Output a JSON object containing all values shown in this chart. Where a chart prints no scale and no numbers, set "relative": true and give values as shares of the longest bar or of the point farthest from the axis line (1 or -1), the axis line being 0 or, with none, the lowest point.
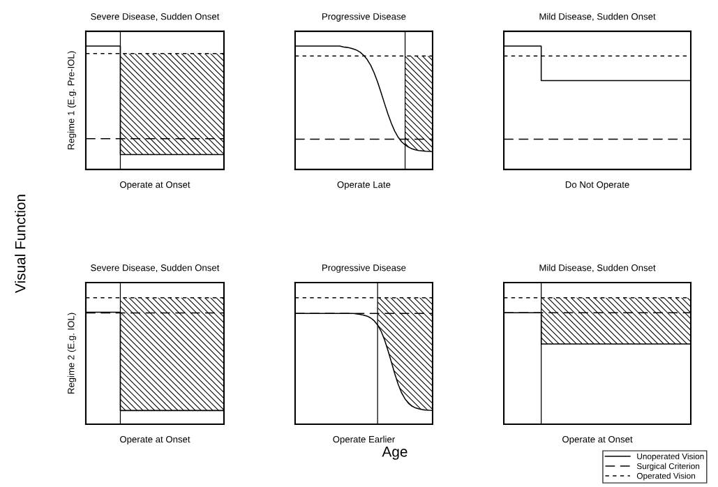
{
  "chart_data": [
    {
      "type": "line",
      "title": "Severe Disease, Sudden Onset",
      "xlabel": "Operate at Onset",
      "ylabel": "Regime 1 (E.g. Pre-IOL)",
      "relative": true,
      "annotations": [
        "Visual Function",
        "Age"
      ],
      "categories": [
        null,
        null,
        null,
        null,
        null,
        null,
        null,
        null,
        null,
        null,
        null,
        null,
        null,
        null,
        null,
        null,
        null,
        null,
        null,
        null,
        null
      ],
      "series": [
        {
          "type": "step",
          "color": "#000000",
          "line_style": "solid",
          "values": [
            1,
            1,
            1,
            1,
            1,
            0.121,
            0.121,
            0.121,
            0.121,
            0.121,
            0.121,
            0.121,
            0.121,
            0.121,
            0.121,
            0.121,
            0.121,
            0.121,
            0.121,
            0.121,
            0.121
          ]
        },
        {
          "type": "line",
          "color": "#000000",
          "line_style": "dashed",
          "values": [
            0.25,
            0.25,
            0.25,
            0.25,
            0.25,
            0.25,
            0.25,
            0.25,
            0.25,
            0.25,
            0.25,
            0.25,
            0.25,
            0.25,
            0.25,
            0.25,
            0.25,
            0.25,
            0.25,
            0.25,
            0.25
          ]
        },
        {
          "type": "line",
          "color": "#000000",
          "line_style": "dotted",
          "values": [
            0.94,
            0.94,
            0.94,
            0.94,
            0.94,
            0.94,
            0.94,
            0.94,
            0.94,
            0.94,
            0.94,
            0.94,
            0.94,
            0.94,
            0.94,
            0.94,
            0.94,
            0.94,
            0.94,
            0.94,
            0.94
          ],
          "lower": [
            null,
            null,
            null,
            null,
            null,
            0.121,
            0.121,
            0.121,
            0.121,
            0.121,
            0.121,
            0.121,
            0.121,
            0.121,
            0.121,
            0.121,
            0.121,
            0.121,
            0.121,
            0.121,
            0.121
          ],
          "upper": [
            null,
            null,
            null,
            null,
            null,
            0.94,
            0.94,
            0.94,
            0.94,
            0.94,
            0.94,
            0.94,
            0.94,
            0.94,
            0.94,
            0.94,
            0.94,
            0.94,
            0.94,
            0.94,
            0.94
          ]
        }
      ]
    },
    {
      "type": "line",
      "title": "Progressive Disease",
      "xlabel": "Operate Late",
      "relative": true,
      "categories": [
        null,
        null,
        null,
        null,
        null,
        null,
        null,
        null,
        null,
        null,
        null,
        null,
        null,
        null,
        null,
        null,
        null,
        null,
        null,
        null,
        null,
        null,
        null,
        null,
        null,
        null,
        null,
        null,
        null,
        null,
        null,
        null,
        null,
        null,
        null,
        null,
        null,
        null,
        null,
        null,
        null
      ],
      "series": [
        {
          "type": "line",
          "color": "#000000",
          "line_style": "solid",
          "values": [
            1,
            1,
            1,
            1,
            1,
            1,
            1,
            1,
            1,
            1,
            1,
            1,
            1,
            1,
            0.993,
            0.99,
            0.985,
            0.977,
            0.966,
            0.949,
            0.924,
            0.89,
            0.844,
            0.783,
            0.709,
            0.625,
            0.536,
            0.451,
            0.374,
            0.31,
            0.261,
            0.224,
            0.199,
            0.181,
            0.168,
            0.159,
            0.154,
            0.151,
            0.148,
            0.146,
            0.145
          ]
        },
        {
          "type": "line",
          "color": "#000000",
          "line_style": "dashed",
          "values": [
            0.245,
            0.245,
            0.245,
            0.245,
            0.245,
            0.245,
            0.245,
            0.245,
            0.245,
            0.245,
            0.245,
            0.245,
            0.245,
            0.245,
            0.245,
            0.245,
            0.245,
            0.245,
            0.245,
            0.245,
            0.245,
            0.245,
            0.245,
            0.245,
            0.245,
            0.245,
            0.245,
            0.245,
            0.245,
            0.245,
            0.245,
            0.245,
            0.245,
            0.245,
            0.245,
            0.245,
            0.245,
            0.245,
            0.245,
            0.245,
            0.245
          ]
        },
        {
          "type": "line",
          "color": "#000000",
          "line_style": "dotted",
          "values": [
            0.92,
            0.92,
            0.92,
            0.92,
            0.92,
            0.92,
            0.92,
            0.92,
            0.92,
            0.92,
            0.92,
            0.92,
            0.92,
            0.92,
            0.92,
            0.92,
            0.92,
            0.92,
            0.92,
            0.92,
            0.92,
            0.92,
            0.92,
            0.92,
            0.92,
            0.92,
            0.92,
            0.92,
            0.92,
            0.92,
            0.92,
            0.92,
            0.92,
            0.92,
            0.92,
            0.92,
            0.92,
            0.92,
            0.92,
            0.92,
            0.92
          ],
          "lower": [
            null,
            null,
            null,
            null,
            null,
            null,
            null,
            null,
            null,
            null,
            null,
            null,
            null,
            null,
            null,
            null,
            null,
            null,
            null,
            null,
            null,
            null,
            null,
            null,
            null,
            null,
            null,
            null,
            null,
            null,
            null,
            null,
            0.199,
            0.181,
            0.168,
            0.159,
            0.154,
            0.151,
            0.148,
            0.146,
            0.145
          ],
          "upper": [
            null,
            null,
            null,
            null,
            null,
            null,
            null,
            null,
            null,
            null,
            null,
            null,
            null,
            null,
            null,
            null,
            null,
            null,
            null,
            null,
            null,
            null,
            null,
            null,
            null,
            null,
            null,
            null,
            null,
            null,
            null,
            null,
            0.92,
            0.92,
            0.92,
            0.92,
            0.92,
            0.92,
            0.92,
            0.92,
            0.92
          ]
        }
      ]
    },
    {
      "type": "line",
      "title": "Mild Disease, Sudden Onset",
      "xlabel": "Do Not Operate",
      "relative": true,
      "categories": [
        null,
        null,
        null,
        null,
        null,
        null,
        null,
        null,
        null,
        null,
        null,
        null,
        null,
        null,
        null,
        null,
        null,
        null,
        null,
        null,
        null
      ],
      "series": [
        {
          "type": "step",
          "color": "#000000",
          "line_style": "solid",
          "values": [
            1,
            1,
            1,
            1,
            0.72,
            0.72,
            0.72,
            0.72,
            0.72,
            0.72,
            0.72,
            0.72,
            0.72,
            0.72,
            0.72,
            0.72,
            0.72,
            0.72,
            0.72,
            0.72,
            0.72
          ]
        },
        {
          "type": "line",
          "color": "#000000",
          "line_style": "dashed",
          "values": [
            0.245,
            0.245,
            0.245,
            0.245,
            0.245,
            0.245,
            0.245,
            0.245,
            0.245,
            0.245,
            0.245,
            0.245,
            0.245,
            0.245,
            0.245,
            0.245,
            0.245,
            0.245,
            0.245,
            0.245,
            0.245
          ]
        },
        {
          "type": "line",
          "color": "#000000",
          "line_style": "dotted",
          "values": [
            0.92,
            0.92,
            0.92,
            0.92,
            0.92,
            0.92,
            0.92,
            0.92,
            0.92,
            0.92,
            0.92,
            0.92,
            0.92,
            0.92,
            0.92,
            0.92,
            0.92,
            0.92,
            0.92,
            0.92,
            0.92
          ]
        }
      ]
    },
    {
      "type": "line",
      "title": "Severe Disease, Sudden Onset",
      "xlabel": "Operate at Onset",
      "ylabel": "Regime 2 (E.g. IOL)",
      "relative": true,
      "categories": [
        null,
        null,
        null,
        null,
        null,
        null,
        null,
        null,
        null,
        null,
        null,
        null,
        null,
        null,
        null,
        null,
        null,
        null,
        null,
        null,
        null
      ],
      "series": [
        {
          "type": "step",
          "color": "#000000",
          "line_style": "solid",
          "values": [
            0.885,
            0.885,
            0.885,
            0.885,
            0.885,
            0.108,
            0.108,
            0.108,
            0.108,
            0.108,
            0.108,
            0.108,
            0.108,
            0.108,
            0.108,
            0.108,
            0.108,
            0.108,
            0.108,
            0.108,
            0.108
          ]
        },
        {
          "type": "line",
          "color": "#000000",
          "line_style": "dashed",
          "values": [
            0.88,
            0.88,
            0.88,
            0.88,
            0.88,
            0.88,
            0.88,
            0.88,
            0.88,
            0.88,
            0.88,
            0.88,
            0.88,
            0.88,
            0.88,
            0.88,
            0.88,
            0.88,
            0.88,
            0.88,
            0.88
          ]
        },
        {
          "type": "line",
          "color": "#000000",
          "line_style": "dotted",
          "values": [
            1,
            1,
            1,
            1,
            1,
            1,
            1,
            1,
            1,
            1,
            1,
            1,
            1,
            1,
            1,
            1,
            1,
            1,
            1,
            1,
            1
          ],
          "lower": [
            null,
            null,
            null,
            null,
            null,
            0.108,
            0.108,
            0.108,
            0.108,
            0.108,
            0.108,
            0.108,
            0.108,
            0.108,
            0.108,
            0.108,
            0.108,
            0.108,
            0.108,
            0.108,
            0.108
          ],
          "upper": [
            null,
            null,
            null,
            null,
            null,
            1,
            1,
            1,
            1,
            1,
            1,
            1,
            1,
            1,
            1,
            1,
            1,
            1,
            1,
            1,
            1
          ]
        }
      ]
    },
    {
      "type": "line",
      "title": "Progressive Disease",
      "xlabel": "Operate Earlier",
      "relative": true,
      "categories": [
        null,
        null,
        null,
        null,
        null,
        null,
        null,
        null,
        null,
        null,
        null,
        null,
        null,
        null,
        null,
        null,
        null,
        null,
        null,
        null,
        null,
        null,
        null,
        null,
        null,
        null,
        null,
        null,
        null,
        null,
        null,
        null,
        null,
        null,
        null,
        null,
        null,
        null,
        null,
        null,
        null
      ],
      "series": [
        {
          "type": "line",
          "color": "#000000",
          "line_style": "solid",
          "values": [
            0.876,
            0.876,
            0.876,
            0.876,
            0.876,
            0.876,
            0.876,
            0.876,
            0.876,
            0.876,
            0.876,
            0.876,
            0.876,
            0.876,
            0.876,
            0.876,
            0.876,
            0.876,
            0.871,
            0.868,
            0.862,
            0.854,
            0.84,
            0.818,
            0.785,
            0.736,
            0.669,
            0.585,
            0.492,
            0.398,
            0.314,
            0.247,
            0.199,
            0.165,
            0.143,
            0.129,
            0.121,
            0.115,
            0.112,
            0.11,
            0.109
          ]
        },
        {
          "type": "line",
          "color": "#000000",
          "line_style": "dashed",
          "values": [
            0.876,
            0.876,
            0.876,
            0.876,
            0.876,
            0.876,
            0.876,
            0.876,
            0.876,
            0.876,
            0.876,
            0.876,
            0.876,
            0.876,
            0.876,
            0.876,
            0.876,
            0.876,
            0.876,
            0.876,
            0.876,
            0.876,
            0.876,
            0.876,
            0.876,
            0.876,
            0.876,
            0.876,
            0.876,
            0.876,
            0.876,
            0.876,
            0.876,
            0.876,
            0.876,
            0.876,
            0.876,
            0.876,
            0.876,
            0.876,
            0.876
          ]
        },
        {
          "type": "line",
          "color": "#000000",
          "line_style": "dotted",
          "values": [
            1,
            1,
            1,
            1,
            1,
            1,
            1,
            1,
            1,
            1,
            1,
            1,
            1,
            1,
            1,
            1,
            1,
            1,
            1,
            1,
            1,
            1,
            1,
            1,
            1,
            1,
            1,
            1,
            1,
            1,
            1,
            1,
            1,
            1,
            1,
            1,
            1,
            1,
            1,
            1,
            1
          ],
          "lower": [
            null,
            null,
            null,
            null,
            null,
            null,
            null,
            null,
            null,
            null,
            null,
            null,
            null,
            null,
            null,
            null,
            null,
            null,
            null,
            null,
            null,
            null,
            null,
            null,
            0.785,
            0.736,
            0.669,
            0.585,
            0.492,
            0.398,
            0.314,
            0.247,
            0.199,
            0.165,
            0.143,
            0.129,
            0.121,
            0.115,
            0.112,
            0.11,
            0.109
          ],
          "upper": [
            null,
            null,
            null,
            null,
            null,
            null,
            null,
            null,
            null,
            null,
            null,
            null,
            null,
            null,
            null,
            null,
            null,
            null,
            null,
            null,
            null,
            null,
            null,
            null,
            1,
            1,
            1,
            1,
            1,
            1,
            1,
            1,
            1,
            1,
            1,
            1,
            1,
            1,
            1,
            1,
            1
          ]
        }
      ]
    },
    {
      "type": "line",
      "title": "Mild Disease, Sudden Onset",
      "xlabel": "Operate at Onset",
      "relative": true,
      "legend": "bottom right",
      "categories": [
        null,
        null,
        null,
        null,
        null,
        null,
        null,
        null,
        null,
        null,
        null,
        null,
        null,
        null,
        null,
        null,
        null,
        null,
        null,
        null,
        null
      ],
      "series": [
        {
          "type": "step",
          "name": "Unoperated Vision",
          "color": "#000000",
          "line_style": "solid",
          "values": [
            0.881,
            0.881,
            0.881,
            0.881,
            0.634,
            0.634,
            0.634,
            0.634,
            0.634,
            0.634,
            0.634,
            0.634,
            0.634,
            0.634,
            0.634,
            0.634,
            0.634,
            0.634,
            0.634,
            0.634,
            0.634
          ]
        },
        {
          "type": "line",
          "name": "Surgical Criterion",
          "color": "#000000",
          "line_style": "dashed",
          "values": [
            0.881,
            0.881,
            0.881,
            0.881,
            0.881,
            0.881,
            0.881,
            0.881,
            0.881,
            0.881,
            0.881,
            0.881,
            0.881,
            0.881,
            0.881,
            0.881,
            0.881,
            0.881,
            0.881,
            0.881,
            0.881
          ]
        },
        {
          "type": "line",
          "name": "Operated Vision",
          "color": "#000000",
          "line_style": "dotted",
          "values": [
            1,
            1,
            1,
            1,
            1,
            1,
            1,
            1,
            1,
            1,
            1,
            1,
            1,
            1,
            1,
            1,
            1,
            1,
            1,
            1,
            1
          ],
          "lower": [
            null,
            null,
            null,
            null,
            0.634,
            0.634,
            0.634,
            0.634,
            0.634,
            0.634,
            0.634,
            0.634,
            0.634,
            0.634,
            0.634,
            0.634,
            0.634,
            0.634,
            0.634,
            0.634,
            0.634
          ],
          "upper": [
            null,
            null,
            null,
            null,
            1,
            1,
            1,
            1,
            1,
            1,
            1,
            1,
            1,
            1,
            1,
            1,
            1,
            1,
            1,
            1,
            1
          ]
        }
      ]
    }
  ]
}
